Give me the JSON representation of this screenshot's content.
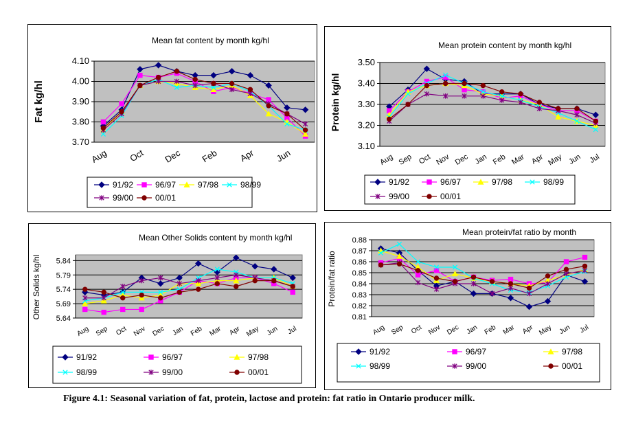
{
  "caption": "Figure 4.1: Seasonal variation of fat, protein, lactose and protein: fat ratio in Ontario producer milk.",
  "series_styles": [
    {
      "name": "91/92",
      "color": "#000080",
      "marker": "diamond"
    },
    {
      "name": "96/97",
      "color": "#ff00ff",
      "marker": "square"
    },
    {
      "name": "97/98",
      "color": "#ffff00",
      "marker": "triangle"
    },
    {
      "name": "98/99",
      "color": "#00ffff",
      "marker": "x"
    },
    {
      "name": "99/00",
      "color": "#800080",
      "marker": "star"
    },
    {
      "name": "00/01",
      "color": "#800000",
      "marker": "circle"
    }
  ],
  "chart_data": [
    {
      "type": "line",
      "title": "Mean fat content by month kg/hl",
      "ylabel": "Fat kg/hl",
      "xlabel": "",
      "ylim": [
        3.7,
        4.1
      ],
      "yticks": [
        "3.70",
        "3.80",
        "3.90",
        "4.00",
        "4.10"
      ],
      "categories": [
        "Aug",
        "Sep",
        "Oct",
        "Nov",
        "Dec",
        "Jan",
        "Feb",
        "Mar",
        "Apr",
        "May",
        "Jun",
        "Jul"
      ],
      "xtick_labels": [
        "Aug",
        "Oct",
        "Dec",
        "Feb",
        "Apr",
        "Jun"
      ],
      "grid": true,
      "series": [
        {
          "name": "91/92",
          "values": [
            3.78,
            3.86,
            4.06,
            4.08,
            4.05,
            4.03,
            4.03,
            4.05,
            4.03,
            3.98,
            3.87,
            3.86
          ]
        },
        {
          "name": "96/97",
          "values": [
            3.8,
            3.89,
            4.03,
            4.02,
            4.04,
            4.0,
            3.95,
            3.97,
            3.94,
            3.91,
            3.82,
            3.73
          ]
        },
        {
          "name": "97/98",
          "values": [
            3.76,
            3.85,
            3.98,
            4.0,
            3.99,
            3.97,
            3.96,
            3.98,
            3.93,
            3.84,
            3.8,
            3.74
          ]
        },
        {
          "name": "98/99",
          "values": [
            3.74,
            3.83,
            3.98,
            4.01,
            3.97,
            3.98,
            3.97,
            3.99,
            3.95,
            3.88,
            3.79,
            3.76
          ]
        },
        {
          "name": "99/00",
          "values": [
            3.76,
            3.84,
            3.98,
            4.0,
            4.0,
            3.98,
            3.99,
            3.96,
            3.94,
            3.89,
            3.84,
            3.79
          ]
        },
        {
          "name": "00/01",
          "values": [
            3.77,
            3.85,
            3.98,
            4.02,
            4.05,
            4.01,
            3.99,
            3.99,
            3.96,
            3.88,
            3.84,
            3.76
          ]
        }
      ],
      "legend": "bottom"
    },
    {
      "type": "line",
      "title": "Mean protein content by month kg/hl",
      "ylabel": "Protein kg/hl",
      "xlabel": "",
      "ylim": [
        3.1,
        3.5
      ],
      "yticks": [
        "3.10",
        "3.20",
        "3.30",
        "3.40",
        "3.50"
      ],
      "categories": [
        "Aug",
        "Sep",
        "Oct",
        "Nov",
        "Dec",
        "Jan",
        "Feb",
        "Mar",
        "Apr",
        "May",
        "Jun",
        "Jul"
      ],
      "xtick_labels": [
        "Aug",
        "Sep",
        "Oct",
        "Nov",
        "Dec",
        "Jan",
        "Feb",
        "Mar",
        "Apr",
        "May",
        "Jun",
        "Jul"
      ],
      "grid": true,
      "series": [
        {
          "name": "91/92",
          "values": [
            3.29,
            3.37,
            3.47,
            3.42,
            3.41,
            3.35,
            3.35,
            3.35,
            3.3,
            3.28,
            3.28,
            3.25
          ]
        },
        {
          "name": "96/97",
          "values": [
            3.27,
            3.36,
            3.41,
            3.43,
            3.37,
            3.36,
            3.33,
            3.34,
            3.3,
            3.27,
            3.27,
            3.22
          ]
        },
        {
          "name": "97/98",
          "values": [
            3.25,
            3.36,
            3.39,
            3.4,
            3.39,
            3.35,
            3.34,
            3.32,
            3.3,
            3.24,
            3.22,
            3.2
          ]
        },
        {
          "name": "98/99",
          "values": [
            3.24,
            3.35,
            3.4,
            3.44,
            3.4,
            3.36,
            3.34,
            3.32,
            3.29,
            3.26,
            3.22,
            3.18
          ]
        },
        {
          "name": "99/00",
          "values": [
            3.22,
            3.3,
            3.35,
            3.34,
            3.34,
            3.34,
            3.32,
            3.31,
            3.28,
            3.27,
            3.25,
            3.21
          ]
        },
        {
          "name": "00/01",
          "values": [
            3.23,
            3.3,
            3.39,
            3.4,
            3.4,
            3.39,
            3.36,
            3.35,
            3.31,
            3.28,
            3.28,
            3.22
          ]
        }
      ],
      "legend": "bottom"
    },
    {
      "type": "line",
      "title": "Mean Other Solids content by month kg/hl",
      "ylabel": "Other Solids kg/hl",
      "xlabel": "",
      "ylim": [
        5.64,
        5.86
      ],
      "yticks": [
        "5.64",
        "5.69",
        "5.74",
        "5.79",
        "5.84"
      ],
      "yticks_values": [
        5.64,
        5.69,
        5.74,
        5.79,
        5.84
      ],
      "categories": [
        "Aug",
        "Sep",
        "Oct",
        "Nov",
        "Dec",
        "Jan",
        "Feb",
        "Mar",
        "Apr",
        "May",
        "Jun",
        "Jul"
      ],
      "xtick_labels": [
        "Aug",
        "Sep",
        "Oct",
        "Nov",
        "Dec",
        "Jan",
        "Feb",
        "Mar",
        "Apr",
        "May",
        "Jun",
        "Jul"
      ],
      "grid": true,
      "series": [
        {
          "name": "91/92",
          "values": [
            5.73,
            5.72,
            5.73,
            5.78,
            5.76,
            5.78,
            5.83,
            5.8,
            5.85,
            5.82,
            5.81,
            5.78
          ]
        },
        {
          "name": "96/97",
          "values": [
            5.67,
            5.66,
            5.67,
            5.67,
            5.7,
            5.73,
            5.77,
            5.76,
            5.78,
            5.78,
            5.76,
            5.73
          ]
        },
        {
          "name": "97/98",
          "values": [
            5.69,
            5.7,
            5.72,
            5.71,
            5.72,
            5.76,
            5.76,
            5.77,
            5.77,
            5.78,
            5.78,
            5.75
          ]
        },
        {
          "name": "98/99",
          "values": [
            5.7,
            5.71,
            5.73,
            5.73,
            5.73,
            5.74,
            5.78,
            5.81,
            5.8,
            5.78,
            5.78,
            5.76
          ]
        },
        {
          "name": "99/00",
          "values": [
            5.71,
            5.71,
            5.75,
            5.77,
            5.78,
            5.76,
            5.77,
            5.78,
            5.79,
            5.78,
            5.77,
            5.75
          ]
        },
        {
          "name": "00/01",
          "values": [
            5.74,
            5.73,
            5.71,
            5.72,
            5.71,
            5.73,
            5.74,
            5.76,
            5.75,
            5.77,
            5.77,
            5.75
          ]
        }
      ],
      "legend": "bottom"
    },
    {
      "type": "line",
      "title": "Mean protein/fat ratio by month",
      "ylabel": "Protein/fat ratio",
      "xlabel": "",
      "ylim": [
        0.81,
        0.88
      ],
      "yticks": [
        "0.81",
        "0.82",
        "0.83",
        "0.84",
        "0.85",
        "0.86",
        "0.87",
        "0.88"
      ],
      "categories": [
        "Aug",
        "Sep",
        "Oct",
        "Nov",
        "Dec",
        "Jan",
        "Feb",
        "Mar",
        "Apr",
        "May",
        "Jun",
        "Jul"
      ],
      "xtick_labels": [
        "Aug",
        "Sep",
        "Oct",
        "Nov",
        "Dec",
        "Jan",
        "Feb",
        "Mar",
        "Apr",
        "May",
        "Jun",
        "Jul"
      ],
      "grid": true,
      "series": [
        {
          "name": "91/92",
          "values": [
            0.872,
            0.868,
            0.852,
            0.838,
            0.842,
            0.831,
            0.831,
            0.827,
            0.819,
            0.824,
            0.848,
            0.842
          ]
        },
        {
          "name": "96/97",
          "values": [
            0.859,
            0.863,
            0.848,
            0.852,
            0.842,
            0.846,
            0.843,
            0.844,
            0.84,
            0.841,
            0.86,
            0.864
          ]
        },
        {
          "name": "97/98",
          "values": [
            0.87,
            0.865,
            0.855,
            0.843,
            0.849,
            0.845,
            0.842,
            0.84,
            0.838,
            0.843,
            0.848,
            0.853
          ]
        },
        {
          "name": "98/99",
          "values": [
            0.868,
            0.876,
            0.86,
            0.855,
            0.855,
            0.845,
            0.84,
            0.834,
            0.832,
            0.838,
            0.846,
            0.851
          ]
        },
        {
          "name": "99/00",
          "values": [
            0.857,
            0.859,
            0.841,
            0.835,
            0.84,
            0.84,
            0.831,
            0.836,
            0.831,
            0.84,
            0.849,
            0.852
          ]
        },
        {
          "name": "00/01",
          "values": [
            0.857,
            0.858,
            0.852,
            0.845,
            0.842,
            0.846,
            0.842,
            0.84,
            0.836,
            0.847,
            0.853,
            0.856
          ]
        }
      ],
      "legend": "bottom"
    }
  ]
}
